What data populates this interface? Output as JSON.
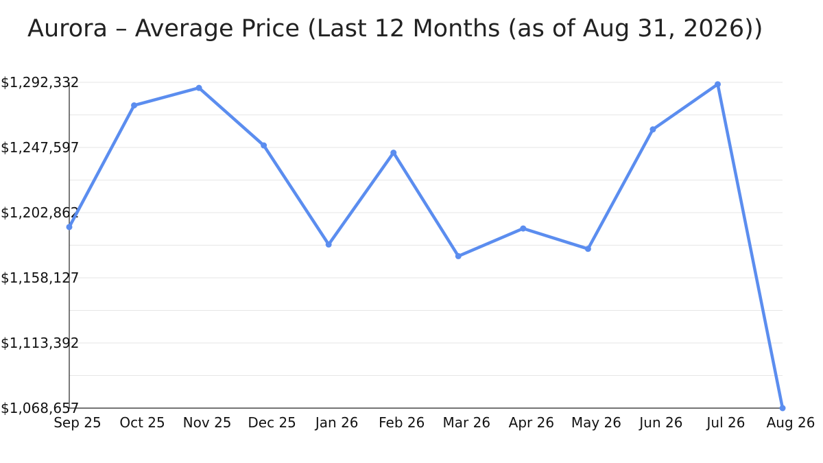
{
  "chart_data": {
    "type": "line",
    "title": "Aurora – Average Price (Last 12 Months (as of Aug 31, 2026))",
    "xlabel": "",
    "ylabel": "",
    "categories": [
      "Sep 25",
      "Oct 25",
      "Nov 25",
      "Dec 25",
      "Jan 26",
      "Feb 26",
      "Mar 26",
      "Apr 26",
      "May 26",
      "Jun 26",
      "Jul 26",
      "Aug 26"
    ],
    "series": [
      {
        "values": [
          1193000,
          1276500,
          1288500,
          1249000,
          1181000,
          1244000,
          1173000,
          1192000,
          1178000,
          1260000,
          1291000,
          1068657
        ]
      }
    ],
    "ylim": [
      1068657,
      1292332
    ],
    "yticks": [
      1068657,
      1113392,
      1158127,
      1202862,
      1247597,
      1292332
    ],
    "ytick_labels": [
      "$1,068,657",
      "$1,113,392",
      "$1,158,127",
      "$1,202,862",
      "$1,247,597",
      "$1,292,332"
    ],
    "grid": true,
    "line_color": "#5b8def",
    "grid_color": "#e6e6e6",
    "axis_color": "#222222"
  }
}
